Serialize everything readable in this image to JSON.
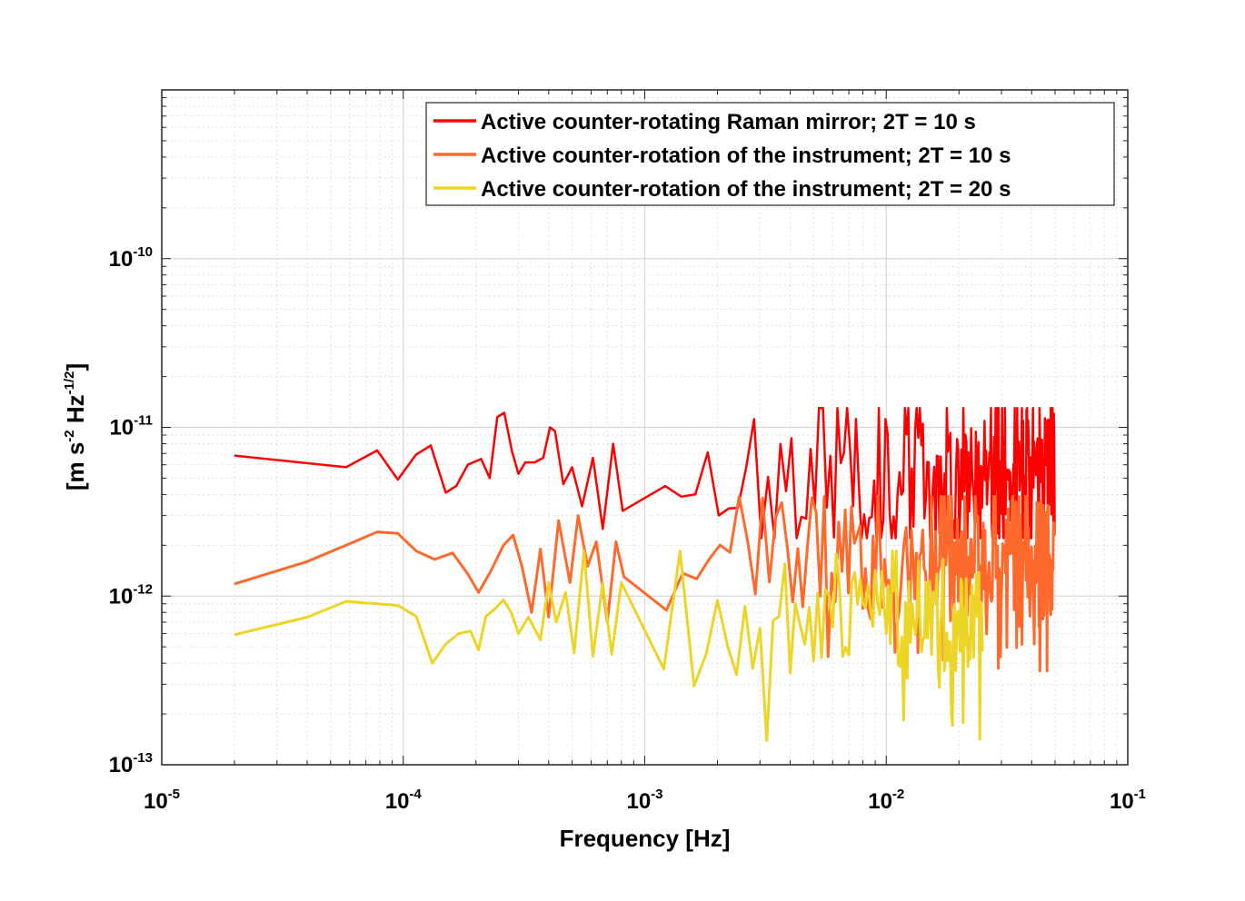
{
  "chart_data": {
    "type": "line",
    "title": "",
    "xlabel": "Frequency  [Hz]",
    "ylabel": {
      "prefix": "[m s",
      "exp1": "-2",
      "mid": " Hz",
      "exp2": "-1/2",
      "suffix": "]"
    },
    "xscale": "log",
    "yscale": "log",
    "xlim": [
      1e-05,
      0.1
    ],
    "ylim": [
      1e-13,
      1e-09
    ],
    "grid": true,
    "minor_grid": true,
    "legend_position": "top-right",
    "x_ticks": [
      {
        "value": 1e-05,
        "base": "10",
        "exp": "-5"
      },
      {
        "value": 0.0001,
        "base": "10",
        "exp": "-4"
      },
      {
        "value": 0.001,
        "base": "10",
        "exp": "-3"
      },
      {
        "value": 0.01,
        "base": "10",
        "exp": "-2"
      },
      {
        "value": 0.1,
        "base": "10",
        "exp": "-1"
      }
    ],
    "y_ticks": [
      {
        "value": 1e-13,
        "base": "10",
        "exp": "-13"
      },
      {
        "value": 1e-12,
        "base": "10",
        "exp": "-12"
      },
      {
        "value": 1e-11,
        "base": "10",
        "exp": "-11"
      },
      {
        "value": 1e-10,
        "base": "10",
        "exp": "-10"
      }
    ],
    "series": [
      {
        "name": "Active counter-rotating Raman mirror; 2T = 10 s",
        "color": "#ff0000",
        "x": [
          2e-05,
          5.8e-05,
          7.8e-05,
          9.5e-05,
          0.000113,
          0.00013,
          0.00015,
          0.000166,
          0.000185,
          0.00021,
          0.000228,
          0.000245,
          0.000262,
          0.000282,
          0.0003,
          0.00032,
          0.00035,
          0.00038,
          0.000405,
          0.000425,
          0.00046,
          0.0005,
          0.00055,
          0.00061,
          0.00067,
          0.00074,
          0.00081
        ],
        "y": [
          6.8e-12,
          5.8e-12,
          7.3e-12,
          4.9e-12,
          6.9e-12,
          7.8e-12,
          4.1e-12,
          4.5e-12,
          6e-12,
          6.5e-12,
          5e-12,
          1.15e-11,
          1.22e-11,
          7.2e-12,
          5.3e-12,
          6.2e-12,
          6.2e-12,
          6.6e-12,
          1e-11,
          9.5e-12,
          4.6e-12,
          5.8e-12,
          3.4e-12,
          6.6e-12,
          2.5e-12,
          8e-12,
          3.2e-12
        ],
        "noise": {
          "start": 0.00081,
          "end": 0.05,
          "center": 5.4e-12,
          "spread": 0.58,
          "max": 1.3e-11,
          "min": 2.2e-12,
          "seed": 11
        }
      },
      {
        "name": "Active counter-rotation of the instrument; 2T = 10 s",
        "color": "#ff6a2c",
        "x": [
          2e-05,
          4e-05,
          5.8e-05,
          7.8e-05,
          9.5e-05,
          0.000113,
          0.000135,
          0.00016,
          0.000185,
          0.000205,
          0.00023,
          0.00026,
          0.000285,
          0.00031,
          0.00034,
          0.00037,
          0.0004,
          0.00044,
          0.00049,
          0.00053,
          0.00058,
          0.00063,
          0.0007,
          0.00076,
          0.00082
        ],
        "y": [
          1.18e-12,
          1.6e-12,
          2e-12,
          2.4e-12,
          2.35e-12,
          1.85e-12,
          1.65e-12,
          1.8e-12,
          1.35e-12,
          1.05e-12,
          1.4e-12,
          2e-12,
          2.3e-12,
          1.5e-12,
          8e-13,
          1.9e-12,
          7.5e-13,
          2.8e-12,
          1.2e-12,
          3e-12,
          1.5e-12,
          2.1e-12,
          7e-13,
          2.1e-12,
          1.3e-12
        ],
        "noise": {
          "start": 0.00082,
          "end": 0.05,
          "center": 1.6e-12,
          "spread": 0.52,
          "max": 3.9e-12,
          "min": 3.6e-13,
          "seed": 23
        }
      },
      {
        "name": "Active counter-rotation of the instrument; 2T = 20 s",
        "color": "#ecd526",
        "x": [
          2e-05,
          4e-05,
          5.8e-05,
          7.8e-05,
          9.5e-05,
          0.000113,
          0.000132,
          0.00015,
          0.00017,
          0.00019,
          0.000205,
          0.00022,
          0.00024,
          0.00026,
          0.00028,
          0.0003,
          0.00033,
          0.00037,
          0.0004,
          0.00043,
          0.00047,
          0.00051,
          0.00056,
          0.00061,
          0.00067,
          0.00073,
          0.0008
        ],
        "y": [
          5.9e-13,
          7.5e-13,
          9.3e-13,
          9e-13,
          8.8e-13,
          7.6e-13,
          4e-13,
          5.2e-13,
          6e-13,
          6.2e-13,
          4.8e-13,
          7.6e-13,
          8.4e-13,
          9.5e-13,
          8e-13,
          6e-13,
          7.5e-13,
          5.5e-13,
          1.2e-12,
          7e-13,
          1.05e-12,
          4.6e-13,
          1.85e-12,
          4.4e-13,
          1.2e-12,
          4.5e-13,
          1.2e-12
        ],
        "noise": {
          "start": 0.0008,
          "end": 0.025,
          "center": 6.8e-13,
          "spread": 0.48,
          "max": 1.85e-12,
          "min": 1.05e-13,
          "seed": 37
        }
      }
    ]
  }
}
